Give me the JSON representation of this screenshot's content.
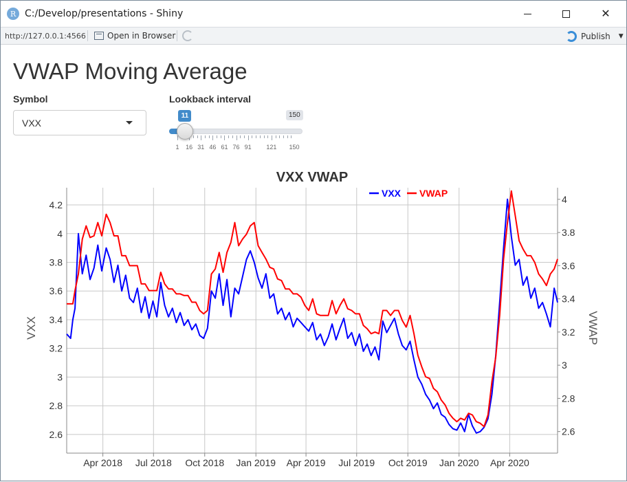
{
  "window": {
    "title": "C:/Develop/presentations - Shiny",
    "app_icon_letter": "R",
    "minimize_icon": "minimize-icon",
    "maximize_icon": "maximize-icon",
    "close_icon": "close-icon",
    "close_glyph": "✕"
  },
  "toolbar": {
    "url": "http://127.0.0.1:4566",
    "open_in_browser": "Open in Browser",
    "publish": "Publish",
    "publish_caret": "▼"
  },
  "page": {
    "title": "VWAP Moving Average"
  },
  "symbol": {
    "label": "Symbol",
    "value": "VXX"
  },
  "lookback": {
    "label": "Lookback interval",
    "value": "11",
    "min": 1,
    "max": 150,
    "max_label": "150",
    "tick_labels": [
      "1",
      "16",
      "31",
      "46",
      "61",
      "76",
      "91",
      "121",
      "150"
    ],
    "tick_values": [
      1,
      16,
      31,
      46,
      61,
      76,
      91,
      121,
      150
    ]
  },
  "colors": {
    "slider_accent": "#428bca",
    "vxx": "#0000ff",
    "vwap": "#ff0000"
  },
  "chart_data": {
    "type": "line",
    "title": "VXX VWAP",
    "ylabel": "VXX",
    "y2label": "VWAP",
    "legend_position": "top-right",
    "x_tick_labels": [
      "Apr 2018",
      "Jul 2018",
      "Oct 2018",
      "Jan 2019",
      "Apr 2019",
      "Jul 2019",
      "Oct 2019",
      "Jan 2020",
      "Apr 2020"
    ],
    "x_tick_dates": [
      "2018-04-01",
      "2018-07-01",
      "2018-10-01",
      "2019-01-01",
      "2019-04-01",
      "2019-07-01",
      "2019-10-01",
      "2020-01-01",
      "2020-04-01"
    ],
    "x_range": [
      "2018-01-26",
      "2020-06-26"
    ],
    "y_left_ticks": [
      "2.6",
      "2.8",
      "3",
      "3.2",
      "3.4",
      "3.6",
      "3.8",
      "4",
      "4.2"
    ],
    "y_left_range": [
      2.47,
      4.32
    ],
    "y_right_ticks": [
      "2.6",
      "2.8",
      "3",
      "3.2",
      "3.4",
      "3.6",
      "3.8",
      "4"
    ],
    "y_right_range": [
      2.47,
      4.07
    ],
    "grid": true,
    "series": [
      {
        "name": "VXX",
        "axis": "left",
        "x": [
          "2018-01-26",
          "2018-02-02",
          "2018-02-06",
          "2018-02-10",
          "2018-02-16",
          "2018-02-23",
          "2018-03-02",
          "2018-03-09",
          "2018-03-16",
          "2018-03-23",
          "2018-03-30",
          "2018-04-07",
          "2018-04-14",
          "2018-04-21",
          "2018-04-28",
          "2018-05-05",
          "2018-05-12",
          "2018-05-19",
          "2018-05-26",
          "2018-06-02",
          "2018-06-09",
          "2018-06-16",
          "2018-06-23",
          "2018-06-30",
          "2018-07-07",
          "2018-07-14",
          "2018-07-21",
          "2018-07-28",
          "2018-08-04",
          "2018-08-11",
          "2018-08-18",
          "2018-08-25",
          "2018-09-01",
          "2018-09-08",
          "2018-09-15",
          "2018-09-22",
          "2018-09-29",
          "2018-10-06",
          "2018-10-13",
          "2018-10-20",
          "2018-10-27",
          "2018-11-03",
          "2018-11-10",
          "2018-11-17",
          "2018-11-24",
          "2018-12-01",
          "2018-12-08",
          "2018-12-15",
          "2018-12-22",
          "2018-12-29",
          "2019-01-05",
          "2019-01-12",
          "2019-01-19",
          "2019-01-26",
          "2019-02-02",
          "2019-02-09",
          "2019-02-16",
          "2019-02-23",
          "2019-03-02",
          "2019-03-09",
          "2019-03-16",
          "2019-03-23",
          "2019-03-30",
          "2019-04-06",
          "2019-04-13",
          "2019-04-20",
          "2019-04-27",
          "2019-05-04",
          "2019-05-11",
          "2019-05-18",
          "2019-05-25",
          "2019-06-01",
          "2019-06-08",
          "2019-06-15",
          "2019-06-22",
          "2019-06-29",
          "2019-07-06",
          "2019-07-13",
          "2019-07-20",
          "2019-07-27",
          "2019-08-03",
          "2019-08-10",
          "2019-08-17",
          "2019-08-24",
          "2019-08-31",
          "2019-09-07",
          "2019-09-14",
          "2019-09-21",
          "2019-09-28",
          "2019-10-05",
          "2019-10-12",
          "2019-10-19",
          "2019-10-26",
          "2019-11-02",
          "2019-11-09",
          "2019-11-16",
          "2019-11-23",
          "2019-11-30",
          "2019-12-07",
          "2019-12-14",
          "2019-12-21",
          "2019-12-28",
          "2020-01-04",
          "2020-01-11",
          "2020-01-18",
          "2020-01-25",
          "2020-02-01",
          "2020-02-08",
          "2020-02-15",
          "2020-02-22",
          "2020-02-29",
          "2020-03-07",
          "2020-03-14",
          "2020-03-21",
          "2020-03-28",
          "2020-04-04",
          "2020-04-11",
          "2020-04-18",
          "2020-04-25",
          "2020-05-02",
          "2020-05-09",
          "2020-05-16",
          "2020-05-23",
          "2020-05-30",
          "2020-06-06",
          "2020-06-13",
          "2020-06-20",
          "2020-06-26"
        ],
        "values": [
          3.3,
          3.27,
          3.4,
          3.48,
          4.0,
          3.72,
          3.85,
          3.68,
          3.76,
          3.92,
          3.74,
          3.9,
          3.82,
          3.66,
          3.78,
          3.6,
          3.71,
          3.55,
          3.52,
          3.62,
          3.45,
          3.56,
          3.41,
          3.53,
          3.42,
          3.66,
          3.5,
          3.42,
          3.48,
          3.38,
          3.45,
          3.36,
          3.4,
          3.33,
          3.37,
          3.29,
          3.27,
          3.34,
          3.6,
          3.55,
          3.72,
          3.5,
          3.68,
          3.42,
          3.62,
          3.58,
          3.7,
          3.82,
          3.88,
          3.8,
          3.69,
          3.62,
          3.72,
          3.55,
          3.58,
          3.44,
          3.48,
          3.4,
          3.45,
          3.35,
          3.41,
          3.38,
          3.35,
          3.32,
          3.38,
          3.26,
          3.3,
          3.22,
          3.28,
          3.37,
          3.26,
          3.34,
          3.41,
          3.27,
          3.31,
          3.22,
          3.3,
          3.18,
          3.23,
          3.15,
          3.21,
          3.12,
          3.39,
          3.31,
          3.36,
          3.41,
          3.3,
          3.22,
          3.19,
          3.25,
          3.12,
          3.0,
          2.95,
          2.88,
          2.84,
          2.78,
          2.82,
          2.74,
          2.72,
          2.67,
          2.64,
          2.63,
          2.68,
          2.62,
          2.74,
          2.66,
          2.61,
          2.62,
          2.65,
          2.71,
          2.88,
          3.15,
          3.52,
          3.9,
          4.24,
          3.98,
          3.78,
          3.82,
          3.64,
          3.7,
          3.55,
          3.62,
          3.48,
          3.52,
          3.44,
          3.35,
          3.62,
          3.52
        ]
      },
      {
        "name": "VWAP",
        "axis": "right",
        "x": [
          "2018-01-26",
          "2018-02-02",
          "2018-02-06",
          "2018-02-10",
          "2018-02-16",
          "2018-02-23",
          "2018-03-02",
          "2018-03-09",
          "2018-03-16",
          "2018-03-23",
          "2018-03-30",
          "2018-04-07",
          "2018-04-14",
          "2018-04-21",
          "2018-04-28",
          "2018-05-05",
          "2018-05-12",
          "2018-05-19",
          "2018-05-26",
          "2018-06-02",
          "2018-06-09",
          "2018-06-16",
          "2018-06-23",
          "2018-06-30",
          "2018-07-07",
          "2018-07-14",
          "2018-07-21",
          "2018-07-28",
          "2018-08-04",
          "2018-08-11",
          "2018-08-18",
          "2018-08-25",
          "2018-09-01",
          "2018-09-08",
          "2018-09-15",
          "2018-09-22",
          "2018-09-29",
          "2018-10-06",
          "2018-10-13",
          "2018-10-20",
          "2018-10-27",
          "2018-11-03",
          "2018-11-10",
          "2018-11-17",
          "2018-11-24",
          "2018-12-01",
          "2018-12-08",
          "2018-12-15",
          "2018-12-22",
          "2018-12-29",
          "2019-01-05",
          "2019-01-12",
          "2019-01-19",
          "2019-01-26",
          "2019-02-02",
          "2019-02-09",
          "2019-02-16",
          "2019-02-23",
          "2019-03-02",
          "2019-03-09",
          "2019-03-16",
          "2019-03-23",
          "2019-03-30",
          "2019-04-06",
          "2019-04-13",
          "2019-04-20",
          "2019-04-27",
          "2019-05-04",
          "2019-05-11",
          "2019-05-18",
          "2019-05-25",
          "2019-06-01",
          "2019-06-08",
          "2019-06-15",
          "2019-06-22",
          "2019-06-29",
          "2019-07-06",
          "2019-07-13",
          "2019-07-20",
          "2019-07-27",
          "2019-08-03",
          "2019-08-10",
          "2019-08-17",
          "2019-08-24",
          "2019-08-31",
          "2019-09-07",
          "2019-09-14",
          "2019-09-21",
          "2019-09-28",
          "2019-10-05",
          "2019-10-12",
          "2019-10-19",
          "2019-10-26",
          "2019-11-02",
          "2019-11-09",
          "2019-11-16",
          "2019-11-23",
          "2019-11-30",
          "2019-12-07",
          "2019-12-14",
          "2019-12-21",
          "2019-12-28",
          "2020-01-04",
          "2020-01-11",
          "2020-01-18",
          "2020-01-25",
          "2020-02-01",
          "2020-02-08",
          "2020-02-15",
          "2020-02-22",
          "2020-02-29",
          "2020-03-07",
          "2020-03-14",
          "2020-03-21",
          "2020-03-28",
          "2020-04-04",
          "2020-04-11",
          "2020-04-18",
          "2020-04-25",
          "2020-05-02",
          "2020-05-09",
          "2020-05-16",
          "2020-05-23",
          "2020-05-30",
          "2020-06-06",
          "2020-06-13",
          "2020-06-20",
          "2020-06-26"
        ],
        "values": [
          3.37,
          3.37,
          3.37,
          3.45,
          3.55,
          3.76,
          3.84,
          3.77,
          3.78,
          3.86,
          3.78,
          3.91,
          3.86,
          3.78,
          3.78,
          3.66,
          3.66,
          3.6,
          3.6,
          3.6,
          3.49,
          3.49,
          3.45,
          3.45,
          3.45,
          3.56,
          3.49,
          3.46,
          3.46,
          3.43,
          3.43,
          3.42,
          3.42,
          3.38,
          3.38,
          3.33,
          3.31,
          3.33,
          3.55,
          3.58,
          3.68,
          3.56,
          3.68,
          3.74,
          3.86,
          3.72,
          3.76,
          3.79,
          3.84,
          3.86,
          3.72,
          3.68,
          3.64,
          3.59,
          3.58,
          3.52,
          3.51,
          3.46,
          3.46,
          3.43,
          3.43,
          3.41,
          3.36,
          3.33,
          3.4,
          3.31,
          3.3,
          3.3,
          3.3,
          3.39,
          3.31,
          3.36,
          3.4,
          3.34,
          3.33,
          3.31,
          3.31,
          3.24,
          3.22,
          3.19,
          3.2,
          3.19,
          3.33,
          3.33,
          3.3,
          3.33,
          3.33,
          3.27,
          3.23,
          3.3,
          3.19,
          3.06,
          2.99,
          2.93,
          2.92,
          2.86,
          2.84,
          2.79,
          2.76,
          2.71,
          2.68,
          2.66,
          2.68,
          2.67,
          2.71,
          2.7,
          2.66,
          2.65,
          2.63,
          2.7,
          2.9,
          3.05,
          3.3,
          3.64,
          3.86,
          4.05,
          3.9,
          3.75,
          3.7,
          3.66,
          3.66,
          3.62,
          3.55,
          3.52,
          3.48,
          3.55,
          3.58,
          3.64
        ]
      }
    ]
  }
}
